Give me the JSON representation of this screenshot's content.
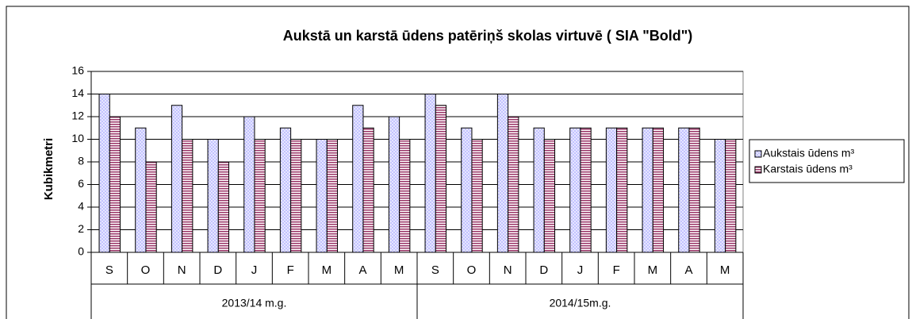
{
  "chart_data": {
    "type": "bar",
    "title": "Aukstā un karstā ūdens patēriņš skolas virtuvē ( SIA \"Bold\")",
    "y_label": "Kubikmetri",
    "categories": [
      "S",
      "O",
      "N",
      "D",
      "J",
      "F",
      "M",
      "A",
      "M",
      "S",
      "O",
      "N",
      "D",
      "J",
      "F",
      "M",
      "A",
      "M"
    ],
    "category_groups": [
      "2013/14 m.g.",
      "2014/15m.g."
    ],
    "series": [
      {
        "name": "Aukstais ūdens m³",
        "color": "#9999ff",
        "values": [
          14,
          11,
          13,
          10,
          12,
          11,
          10,
          13,
          12,
          14,
          11,
          14,
          11,
          11,
          11,
          11,
          11,
          10
        ]
      },
      {
        "name": "Karstais ūdens m³",
        "color": "#993366",
        "values": [
          12,
          8,
          10,
          8,
          10,
          10,
          10,
          11,
          10,
          13,
          10,
          12,
          10,
          11,
          11,
          11,
          11,
          10
        ]
      }
    ],
    "ylim": [
      0,
      16
    ],
    "yticks": [
      0,
      2,
      4,
      6,
      8,
      10,
      12,
      14,
      16
    ],
    "grid": true,
    "legend": "right"
  }
}
